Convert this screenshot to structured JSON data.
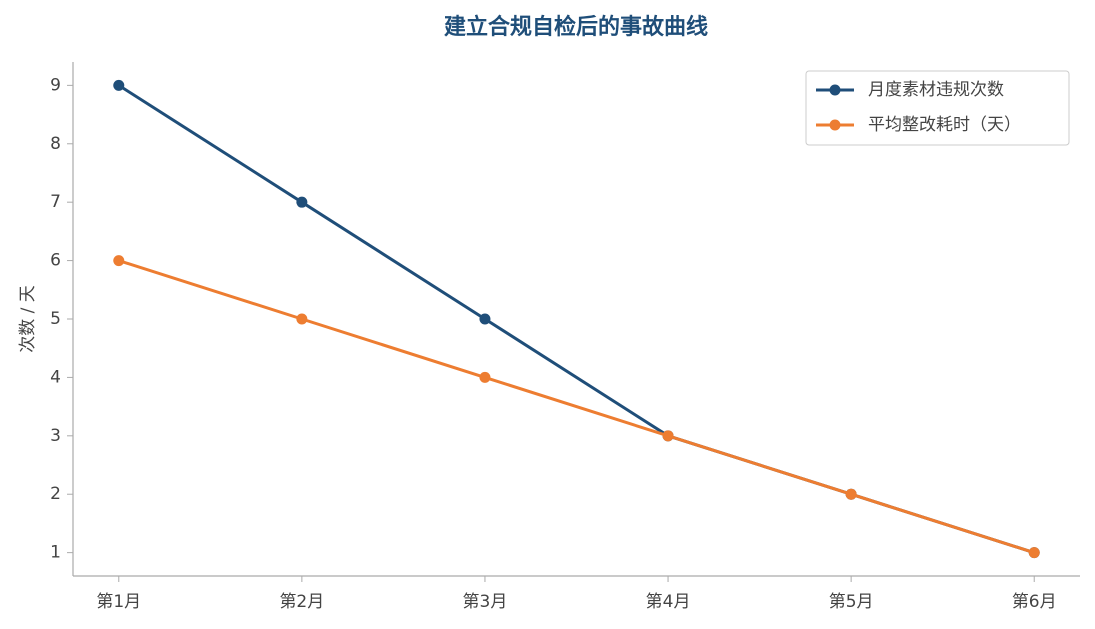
{
  "chart_data": {
    "type": "line",
    "title": "建立合规自检后的事故曲线",
    "y_label": "次数 / 天",
    "categories": [
      "第1月",
      "第2月",
      "第3月",
      "第4月",
      "第5月",
      "第6月"
    ],
    "series": [
      {
        "name": "月度素材违规次数",
        "color": "#1f4e79",
        "values": [
          9,
          7,
          5,
          3,
          2,
          1
        ]
      },
      {
        "name": "平均整改耗时（天）",
        "color": "#ed7d31",
        "values": [
          6,
          5,
          4,
          3,
          2,
          1
        ]
      }
    ],
    "ylim": [
      0.6,
      9.4
    ],
    "yticks": [
      1,
      2,
      3,
      4,
      5,
      6,
      7,
      8,
      9
    ],
    "grid": false,
    "legend": "upper right"
  }
}
